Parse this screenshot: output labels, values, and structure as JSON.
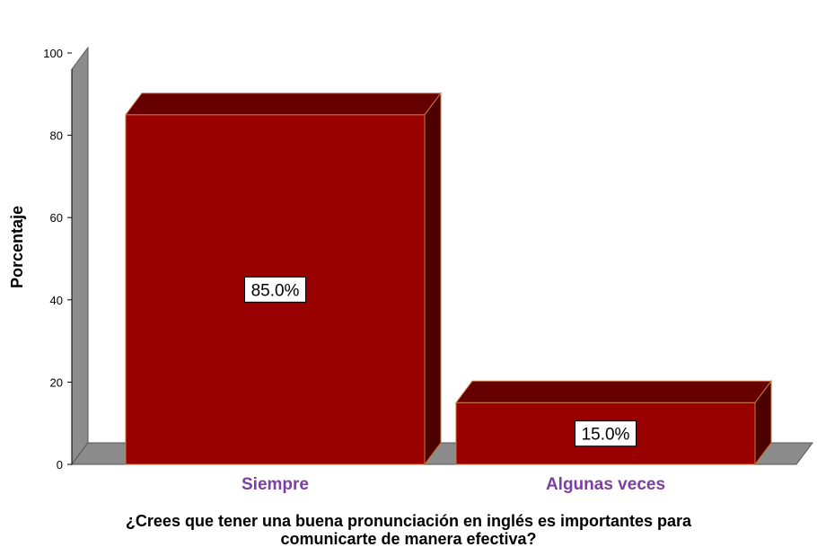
{
  "chart_data": {
    "type": "bar",
    "categories": [
      "Siempre",
      "Algunas veces"
    ],
    "values": [
      85.0,
      15.0
    ],
    "data_labels": [
      "85.0%",
      "15.0%"
    ],
    "ylabel": "Porcentaje",
    "xlabel_lines": [
      "¿Crees que tener una buena pronunciación en inglés es importantes para",
      "comunicarte de manera efectiva?"
    ],
    "yticks": [
      "0",
      "20",
      "40",
      "60",
      "80",
      "100"
    ],
    "ylim": [
      0,
      100
    ],
    "grid": false,
    "style": "3d",
    "colors": {
      "bar_front": "#990000",
      "bar_top": "#660000",
      "bar_side": "#4d0000",
      "wall": "#8c8c8c",
      "floor": "#8c8c8c",
      "category_text": "#7a3fa0"
    }
  }
}
